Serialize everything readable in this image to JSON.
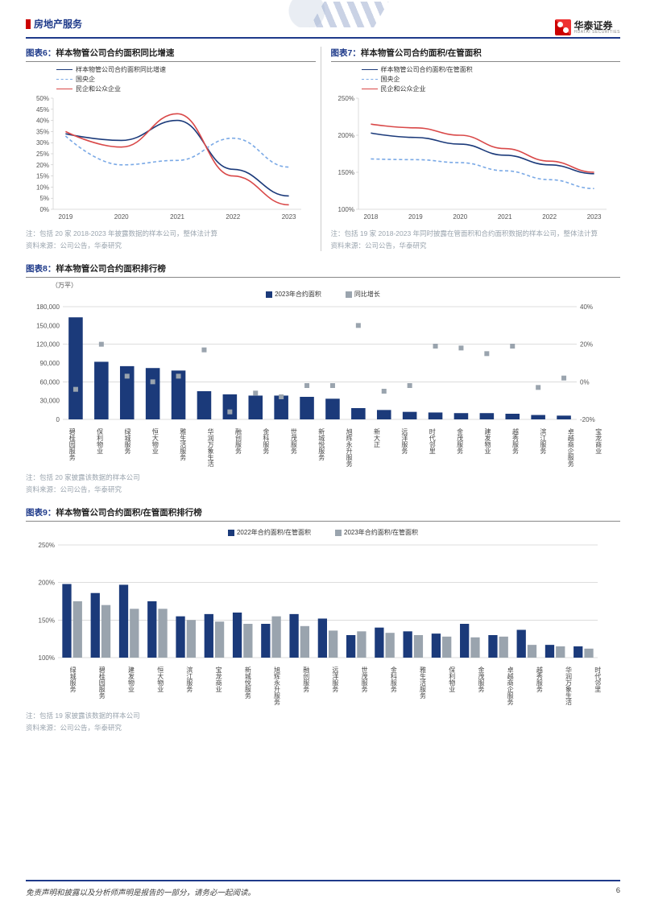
{
  "header": {
    "title": "房地产服务",
    "logo_cn": "华泰证券",
    "logo_en": "HUATAI SECURITIES"
  },
  "chart6": {
    "idx": "图表6：",
    "title": "样本物管公司合约面积同比增速",
    "type": "line",
    "legend": [
      {
        "label": "样本物管公司合约面积同比增速",
        "color": "#1b3a7a",
        "dash": false
      },
      {
        "label": "国央企",
        "color": "#7aa9e6",
        "dash": true
      },
      {
        "label": "民企和公众企业",
        "color": "#d94848",
        "dash": false
      }
    ],
    "x": [
      "2019",
      "2020",
      "2021",
      "2022",
      "2023"
    ],
    "ylim": [
      0,
      50
    ],
    "ytick_step": 5,
    "series": {
      "total": [
        34,
        31,
        40,
        18,
        6
      ],
      "soe": [
        33,
        20,
        22,
        32,
        19
      ],
      "priv": [
        35,
        28,
        43,
        15,
        2
      ]
    },
    "colors": {
      "total": "#1b3a7a",
      "soe": "#7aa9e6",
      "priv": "#d94848"
    },
    "note1": "注：包括 20 家 2018-2023 年披露数据的样本公司，整体法计算",
    "note2": "资料来源：公司公告，华泰研究"
  },
  "chart7": {
    "idx": "图表7：",
    "title": "样本物管公司合约面积/在管面积",
    "type": "line",
    "legend": [
      {
        "label": "样本物管公司合约面积/在管面积",
        "color": "#1b3a7a",
        "dash": false
      },
      {
        "label": "国央企",
        "color": "#7aa9e6",
        "dash": true
      },
      {
        "label": "民企和公众企业",
        "color": "#d94848",
        "dash": false
      }
    ],
    "x": [
      "2018",
      "2019",
      "2020",
      "2021",
      "2022",
      "2023"
    ],
    "ylim": [
      100,
      250
    ],
    "ytick_step": 50,
    "series": {
      "total": [
        203,
        197,
        188,
        173,
        160,
        148
      ],
      "soe": [
        168,
        167,
        163,
        152,
        140,
        128
      ],
      "priv": [
        215,
        210,
        200,
        182,
        165,
        150
      ]
    },
    "colors": {
      "total": "#1b3a7a",
      "soe": "#7aa9e6",
      "priv": "#d94848"
    },
    "note1": "注：包括 19 家 2018-2023 年同时披露在管面积和合约面积数据的样本公司，整体法计算",
    "note2": "资料来源：公司公告，华泰研究"
  },
  "chart8": {
    "idx": "图表8：",
    "title": "样本物管公司合约面积排行榜",
    "type": "bar+scatter",
    "y_left_label": "（万平）",
    "legend": [
      {
        "label": "2023年合约面积",
        "color": "#1b3a7a",
        "kind": "bar"
      },
      {
        "label": "同比增长",
        "color": "#9aa4ae",
        "kind": "square"
      }
    ],
    "ylim_left": [
      0,
      180000
    ],
    "ytick_left_step": 30000,
    "ylim_right": [
      -20,
      40
    ],
    "ytick_right_step": 20,
    "categories": [
      "碧桂园服务",
      "保利物业",
      "绿城服务",
      "恒大物业",
      "雅生活服务",
      "华润万象生活",
      "融创服务",
      "金科服务",
      "世茂服务",
      "新城悦服务",
      "旭辉永升服务",
      "新大正",
      "远洋服务",
      "时代邻里",
      "金茂服务",
      "建发物业",
      "越秀服务",
      "滨江服务",
      "卓越商企服务",
      "宝龙商业"
    ],
    "bar_values": [
      163000,
      92000,
      85000,
      82000,
      78000,
      45000,
      40000,
      38000,
      38000,
      36000,
      33000,
      18000,
      15000,
      12000,
      11000,
      10000,
      10000,
      9000,
      7000,
      6000
    ],
    "scatter_vals": [
      -4,
      20,
      3,
      0,
      3,
      17,
      -16,
      -6,
      -8,
      -2,
      -2,
      30,
      -5,
      -2,
      19,
      18,
      15,
      19,
      -3,
      2
    ],
    "bar_color": "#1b3a7a",
    "scatter_color": "#9aa4ae",
    "note1": "注：包括 20 家披露该数据的样本公司",
    "note2": "资料来源：公司公告，华泰研究"
  },
  "chart9": {
    "idx": "图表9：",
    "title": "样本物管公司合约面积/在管面积排行榜",
    "type": "grouped-bar",
    "legend": [
      {
        "label": "2022年合约面积/在管面积",
        "color": "#1b3a7a"
      },
      {
        "label": "2023年合约面积/在管面积",
        "color": "#9aa4ae"
      }
    ],
    "ylim": [
      100,
      250
    ],
    "ytick_step": 50,
    "categories": [
      "绿城服务",
      "碧桂园服务",
      "建发物业",
      "恒大物业",
      "滨江服务",
      "宝龙商业",
      "新城悦服务",
      "旭辉永升服务",
      "融创服务",
      "远洋服务",
      "世茂服务",
      "金科服务",
      "雅生活服务",
      "保利物业",
      "金茂服务",
      "卓越商企服务",
      "越秀服务",
      "华润万象生活",
      "时代邻里"
    ],
    "series_a": [
      198,
      186,
      197,
      175,
      155,
      158,
      160,
      145,
      158,
      152,
      130,
      140,
      135,
      132,
      145,
      130,
      137,
      117,
      115
    ],
    "series_b": [
      175,
      170,
      165,
      165,
      150,
      148,
      145,
      155,
      142,
      136,
      135,
      133,
      130,
      128,
      127,
      128,
      117,
      115,
      112
    ],
    "color_a": "#1b3a7a",
    "color_b": "#9aa4ae",
    "note1": "注：包括 19 家披露该数据的样本公司",
    "note2": "资料来源：公司公告，华泰研究"
  },
  "footer": {
    "left": "免责声明和披露以及分析师声明是报告的一部分，请务必一起阅读。",
    "page": "6"
  }
}
